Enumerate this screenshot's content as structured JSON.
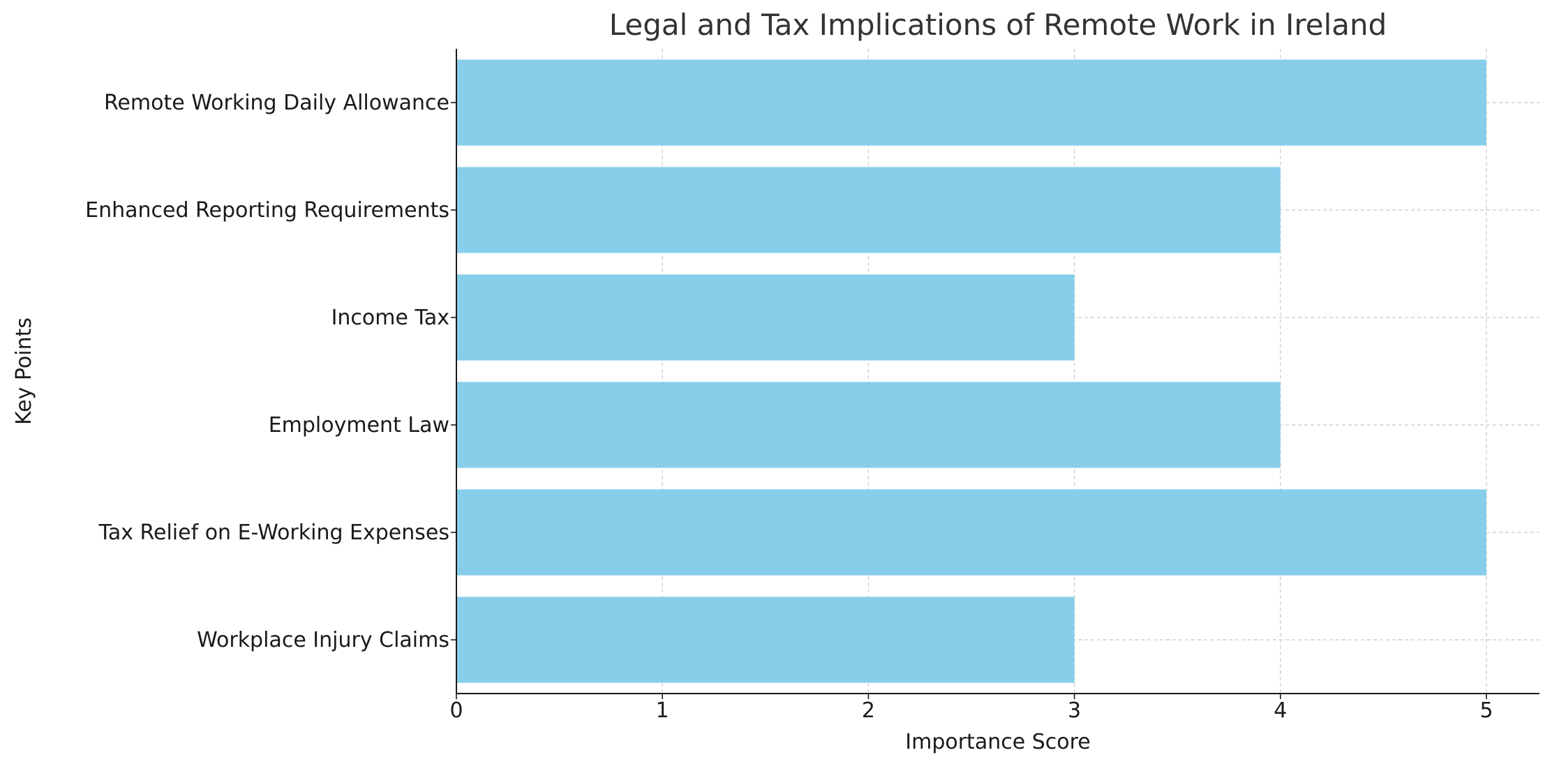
{
  "chart_data": {
    "type": "bar",
    "orientation": "horizontal",
    "title": "Legal and Tax Implications of Remote Work in Ireland",
    "xlabel": "Importance Score",
    "ylabel": "Key Points",
    "categories": [
      "Remote Working Daily Allowance",
      "Enhanced Reporting Requirements",
      "Income Tax",
      "Employment Law",
      "Tax Relief on E-Working Expenses",
      "Workplace Injury Claims"
    ],
    "values": [
      5,
      4,
      3,
      4,
      5,
      3
    ],
    "xlim": [
      0,
      5.25
    ],
    "xticks": [
      "0",
      "1",
      "2",
      "3",
      "4",
      "5"
    ],
    "grid": true,
    "bar_color": "#87CEEB",
    "grid_color": "#c8c8c8",
    "text_color": "#1a1a1a",
    "title_color": "#333333"
  }
}
